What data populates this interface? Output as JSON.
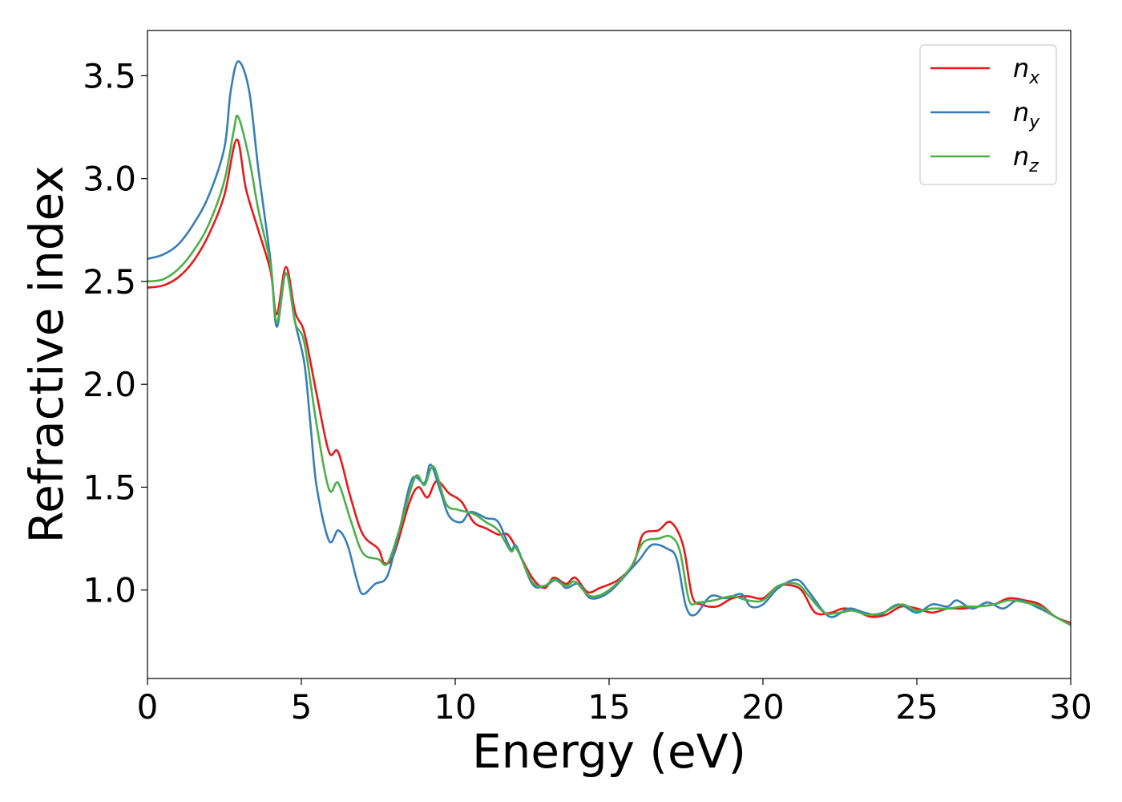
{
  "chart_data": {
    "type": "line",
    "title": "",
    "xlabel": "Energy (eV)",
    "ylabel": "Refractive index",
    "xlim": [
      0,
      30
    ],
    "ylim": [
      0.57,
      3.72
    ],
    "xticks": [
      0,
      5,
      10,
      15,
      20,
      25,
      30
    ],
    "xtick_labels": [
      "0",
      "5",
      "10",
      "15",
      "20",
      "25",
      "30"
    ],
    "yticks": [
      1.0,
      1.5,
      2.0,
      2.5,
      3.0,
      3.5
    ],
    "ytick_labels": [
      "1.0",
      "1.5",
      "2.0",
      "2.5",
      "3.0",
      "3.5"
    ],
    "grid": false,
    "legend_position": "top-right",
    "series": [
      {
        "name": "n_x",
        "label_base": "n",
        "label_sub": "x",
        "color": "#e41a1c",
        "points": [
          [
            0,
            2.47
          ],
          [
            0.5,
            2.48
          ],
          [
            1,
            2.52
          ],
          [
            1.5,
            2.6
          ],
          [
            2,
            2.73
          ],
          [
            2.5,
            2.92
          ],
          [
            2.9,
            3.19
          ],
          [
            3.2,
            2.95
          ],
          [
            3.6,
            2.75
          ],
          [
            4,
            2.55
          ],
          [
            4.2,
            2.34
          ],
          [
            4.5,
            2.57
          ],
          [
            4.8,
            2.35
          ],
          [
            5.1,
            2.25
          ],
          [
            5.5,
            1.95
          ],
          [
            5.9,
            1.67
          ],
          [
            6.2,
            1.67
          ],
          [
            6.6,
            1.45
          ],
          [
            7,
            1.27
          ],
          [
            7.5,
            1.2
          ],
          [
            7.7,
            1.13
          ],
          [
            8,
            1.17
          ],
          [
            8.5,
            1.42
          ],
          [
            8.8,
            1.5
          ],
          [
            9.1,
            1.45
          ],
          [
            9.4,
            1.53
          ],
          [
            9.8,
            1.47
          ],
          [
            10.2,
            1.43
          ],
          [
            10.6,
            1.33
          ],
          [
            11,
            1.3
          ],
          [
            11.4,
            1.27
          ],
          [
            11.7,
            1.27
          ],
          [
            12,
            1.2
          ],
          [
            12.5,
            1.06
          ],
          [
            12.9,
            1.01
          ],
          [
            13.2,
            1.06
          ],
          [
            13.6,
            1.03
          ],
          [
            13.9,
            1.06
          ],
          [
            14.3,
            0.99
          ],
          [
            14.7,
            1.01
          ],
          [
            15.3,
            1.05
          ],
          [
            15.8,
            1.13
          ],
          [
            16.1,
            1.27
          ],
          [
            16.6,
            1.29
          ],
          [
            17,
            1.33
          ],
          [
            17.4,
            1.22
          ],
          [
            17.7,
            0.97
          ],
          [
            18,
            0.93
          ],
          [
            18.5,
            0.92
          ],
          [
            19,
            0.96
          ],
          [
            19.5,
            0.97
          ],
          [
            20,
            0.96
          ],
          [
            20.5,
            1.02
          ],
          [
            21,
            1.02
          ],
          [
            21.3,
            0.99
          ],
          [
            21.7,
            0.89
          ],
          [
            22.2,
            0.89
          ],
          [
            22.6,
            0.91
          ],
          [
            23,
            0.9
          ],
          [
            23.5,
            0.87
          ],
          [
            24,
            0.88
          ],
          [
            24.5,
            0.92
          ],
          [
            25,
            0.91
          ],
          [
            25.5,
            0.89
          ],
          [
            26,
            0.91
          ],
          [
            26.5,
            0.91
          ],
          [
            27,
            0.92
          ],
          [
            27.5,
            0.93
          ],
          [
            28,
            0.96
          ],
          [
            28.5,
            0.95
          ],
          [
            29,
            0.93
          ],
          [
            29.5,
            0.87
          ],
          [
            30,
            0.84
          ]
        ]
      },
      {
        "name": "n_y",
        "label_base": "n",
        "label_sub": "y",
        "color": "#377eb8",
        "points": [
          [
            0,
            2.61
          ],
          [
            0.5,
            2.63
          ],
          [
            1,
            2.68
          ],
          [
            1.5,
            2.78
          ],
          [
            2,
            2.92
          ],
          [
            2.5,
            3.15
          ],
          [
            2.7,
            3.42
          ],
          [
            2.95,
            3.57
          ],
          [
            3.3,
            3.43
          ],
          [
            3.6,
            3.05
          ],
          [
            4,
            2.6
          ],
          [
            4.2,
            2.28
          ],
          [
            4.5,
            2.54
          ],
          [
            4.8,
            2.3
          ],
          [
            5.1,
            2.1
          ],
          [
            5.3,
            1.8
          ],
          [
            5.5,
            1.5
          ],
          [
            5.9,
            1.24
          ],
          [
            6.2,
            1.29
          ],
          [
            6.5,
            1.22
          ],
          [
            6.8,
            1.05
          ],
          [
            7,
            0.98
          ],
          [
            7.4,
            1.03
          ],
          [
            7.8,
            1.07
          ],
          [
            8.2,
            1.3
          ],
          [
            8.6,
            1.54
          ],
          [
            9,
            1.52
          ],
          [
            9.2,
            1.61
          ],
          [
            9.5,
            1.49
          ],
          [
            9.8,
            1.36
          ],
          [
            10.2,
            1.33
          ],
          [
            10.5,
            1.38
          ],
          [
            11,
            1.35
          ],
          [
            11.4,
            1.33
          ],
          [
            11.8,
            1.2
          ],
          [
            12,
            1.21
          ],
          [
            12.5,
            1.03
          ],
          [
            12.9,
            1.02
          ],
          [
            13.3,
            1.05
          ],
          [
            13.6,
            1.01
          ],
          [
            14,
            1.03
          ],
          [
            14.4,
            0.96
          ],
          [
            15,
            0.99
          ],
          [
            15.7,
            1.1
          ],
          [
            16,
            1.15
          ],
          [
            16.4,
            1.22
          ],
          [
            16.9,
            1.2
          ],
          [
            17.2,
            1.15
          ],
          [
            17.5,
            0.92
          ],
          [
            17.8,
            0.88
          ],
          [
            18.3,
            0.97
          ],
          [
            18.8,
            0.96
          ],
          [
            19.3,
            0.98
          ],
          [
            19.6,
            0.92
          ],
          [
            20,
            0.93
          ],
          [
            20.5,
            1.01
          ],
          [
            21.1,
            1.05
          ],
          [
            21.5,
            0.99
          ],
          [
            22,
            0.89
          ],
          [
            22.3,
            0.87
          ],
          [
            22.8,
            0.91
          ],
          [
            23.3,
            0.89
          ],
          [
            23.8,
            0.88
          ],
          [
            24.4,
            0.93
          ],
          [
            25,
            0.89
          ],
          [
            25.5,
            0.93
          ],
          [
            26,
            0.92
          ],
          [
            26.3,
            0.95
          ],
          [
            26.8,
            0.91
          ],
          [
            27.3,
            0.94
          ],
          [
            27.8,
            0.91
          ],
          [
            28.3,
            0.95
          ],
          [
            29,
            0.91
          ],
          [
            29.5,
            0.87
          ],
          [
            30,
            0.83
          ]
        ]
      },
      {
        "name": "n_z",
        "label_base": "n",
        "label_sub": "z",
        "color": "#4daf4a",
        "points": [
          [
            0,
            2.5
          ],
          [
            0.5,
            2.51
          ],
          [
            1,
            2.56
          ],
          [
            1.5,
            2.65
          ],
          [
            2,
            2.78
          ],
          [
            2.5,
            2.99
          ],
          [
            2.8,
            3.23
          ],
          [
            2.95,
            3.3
          ],
          [
            3.3,
            3.1
          ],
          [
            3.6,
            2.85
          ],
          [
            4,
            2.58
          ],
          [
            4.2,
            2.3
          ],
          [
            4.5,
            2.54
          ],
          [
            4.8,
            2.3
          ],
          [
            5.1,
            2.2
          ],
          [
            5.5,
            1.8
          ],
          [
            5.9,
            1.49
          ],
          [
            6.2,
            1.52
          ],
          [
            6.6,
            1.34
          ],
          [
            7,
            1.18
          ],
          [
            7.5,
            1.15
          ],
          [
            7.8,
            1.13
          ],
          [
            8.2,
            1.3
          ],
          [
            8.7,
            1.55
          ],
          [
            9,
            1.51
          ],
          [
            9.3,
            1.6
          ],
          [
            9.7,
            1.42
          ],
          [
            10.1,
            1.39
          ],
          [
            10.6,
            1.37
          ],
          [
            11,
            1.33
          ],
          [
            11.4,
            1.29
          ],
          [
            11.8,
            1.19
          ],
          [
            12,
            1.2
          ],
          [
            12.5,
            1.04
          ],
          [
            12.9,
            1.02
          ],
          [
            13.2,
            1.05
          ],
          [
            13.6,
            1.02
          ],
          [
            13.9,
            1.04
          ],
          [
            14.4,
            0.97
          ],
          [
            15,
            1.0
          ],
          [
            15.7,
            1.11
          ],
          [
            16.1,
            1.23
          ],
          [
            16.6,
            1.25
          ],
          [
            17,
            1.26
          ],
          [
            17.3,
            1.19
          ],
          [
            17.6,
            0.95
          ],
          [
            17.9,
            0.94
          ],
          [
            18.4,
            0.95
          ],
          [
            19,
            0.97
          ],
          [
            19.5,
            0.95
          ],
          [
            20,
            0.95
          ],
          [
            20.5,
            1.02
          ],
          [
            21.1,
            1.03
          ],
          [
            21.5,
            0.97
          ],
          [
            22,
            0.89
          ],
          [
            22.5,
            0.89
          ],
          [
            22.9,
            0.9
          ],
          [
            23.4,
            0.88
          ],
          [
            23.9,
            0.89
          ],
          [
            24.5,
            0.93
          ],
          [
            25,
            0.9
          ],
          [
            25.5,
            0.91
          ],
          [
            26,
            0.91
          ],
          [
            26.5,
            0.92
          ],
          [
            27,
            0.92
          ],
          [
            27.5,
            0.93
          ],
          [
            28,
            0.95
          ],
          [
            28.5,
            0.94
          ],
          [
            29,
            0.92
          ],
          [
            29.5,
            0.87
          ],
          [
            30,
            0.83
          ]
        ]
      }
    ]
  }
}
